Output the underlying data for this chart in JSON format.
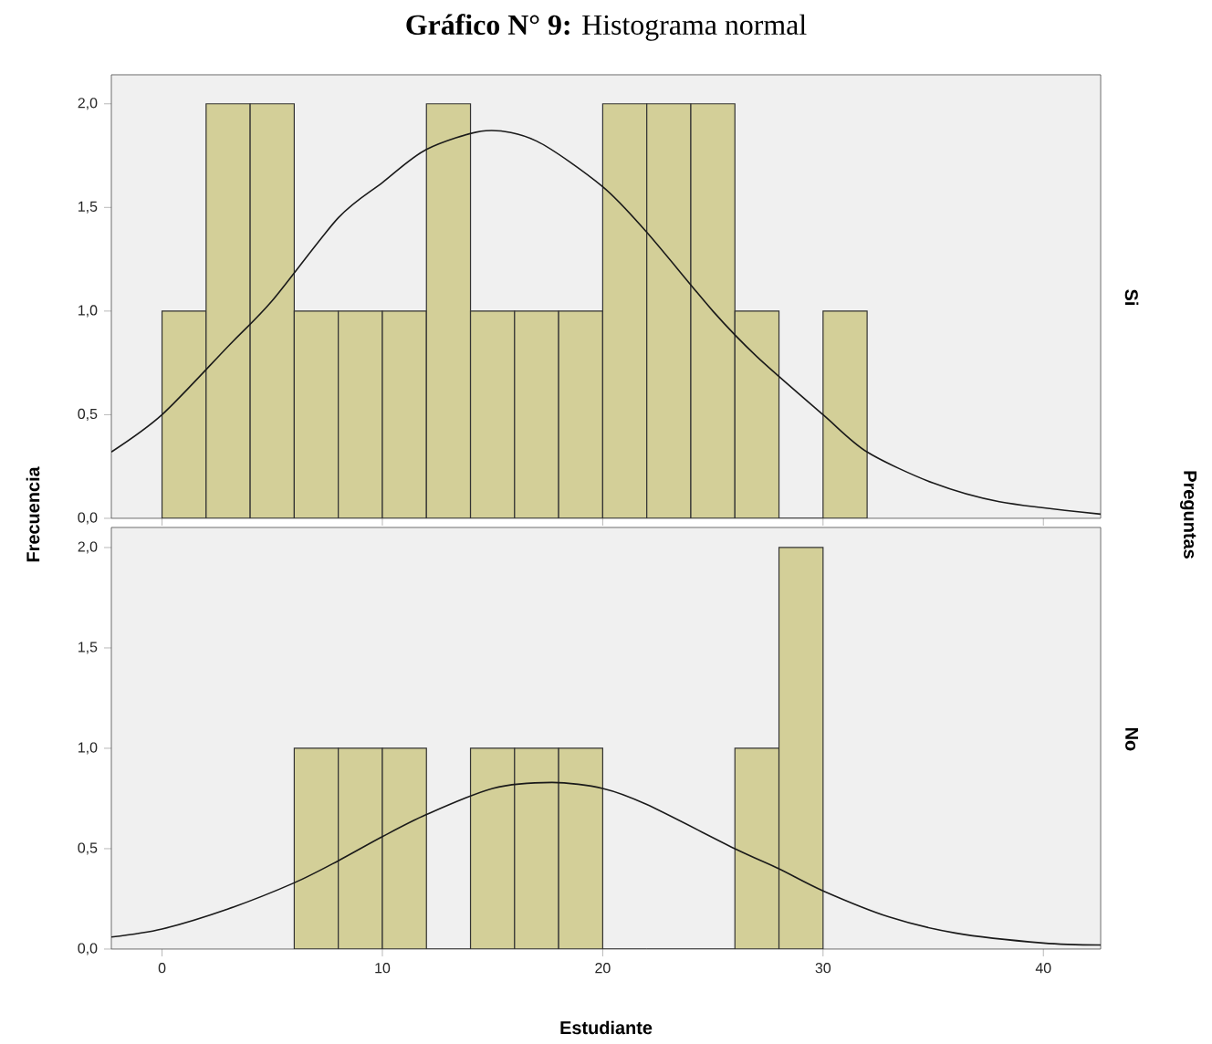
{
  "chart_data": [
    {
      "type": "histogram",
      "title": "**Gráfico N° 9:** Histograma normal",
      "ylabel": "Frecuencia",
      "y2label": "Preguntas",
      "annotations": [
        "Si"
      ],
      "xlim": [
        -2.3,
        42.6
      ],
      "ylim": [
        0,
        2.14
      ],
      "tick_labels": "y",
      "xticks": [
        0,
        10,
        20,
        30,
        40
      ],
      "yticks": [
        {
          "value": 0,
          "label": "0,0"
        },
        {
          "value": 0.5,
          "label": "0,5"
        },
        {
          "value": 1,
          "label": "1,0"
        },
        {
          "value": 1.5,
          "label": "1,5"
        },
        {
          "value": 2,
          "label": "2,0"
        }
      ],
      "series": [
        {
          "color": "#d3cf98",
          "bins": [
            0,
            2,
            4,
            6,
            8,
            10,
            12,
            14,
            16,
            18,
            20,
            22,
            24,
            26,
            28,
            30,
            32
          ],
          "values": [
            1,
            2,
            2,
            1,
            1,
            1,
            2,
            1,
            1,
            1,
            2,
            2,
            2,
            1,
            0,
            1
          ]
        },
        {
          "type": "line",
          "color": "#1a1a1a",
          "x": [
            -2.3,
            0,
            3,
            5,
            8,
            10,
            12,
            14.7,
            17,
            20,
            22,
            25,
            27,
            30,
            32,
            35,
            38,
            42.6
          ],
          "values": [
            0.32,
            0.5,
            0.83,
            1.05,
            1.45,
            1.62,
            1.78,
            1.87,
            1.82,
            1.6,
            1.38,
            1.0,
            0.78,
            0.5,
            0.32,
            0.17,
            0.08,
            0.02
          ]
        }
      ]
    },
    {
      "type": "histogram",
      "xlabel": "Estudiante",
      "annotations": [
        "No"
      ],
      "xlim": [
        -2.3,
        42.6
      ],
      "ylim": [
        0,
        2.1
      ],
      "xticks": [
        0,
        10,
        20,
        30,
        40
      ],
      "yticks": [
        {
          "value": 0,
          "label": "0,0"
        },
        {
          "value": 0.5,
          "label": "0,5"
        },
        {
          "value": 1,
          "label": "1,0"
        },
        {
          "value": 1.5,
          "label": "1,5"
        },
        {
          "value": 2,
          "label": "2,0"
        }
      ],
      "series": [
        {
          "color": "#d3cf98",
          "bins": [
            6,
            8,
            10,
            12,
            14,
            16,
            18,
            20,
            22,
            24,
            26,
            28,
            30
          ],
          "values": [
            1,
            1,
            1,
            0,
            1,
            1,
            1,
            0,
            0,
            0,
            1,
            2
          ]
        },
        {
          "type": "line",
          "color": "#1a1a1a",
          "x": [
            -2.3,
            0,
            3,
            6,
            8,
            10,
            12,
            15,
            17.7,
            20,
            22,
            26,
            28,
            30,
            33,
            36,
            40,
            42.6
          ],
          "values": [
            0.06,
            0.1,
            0.2,
            0.33,
            0.44,
            0.56,
            0.67,
            0.8,
            0.83,
            0.8,
            0.72,
            0.5,
            0.4,
            0.29,
            0.16,
            0.08,
            0.03,
            0.02
          ]
        }
      ]
    }
  ]
}
